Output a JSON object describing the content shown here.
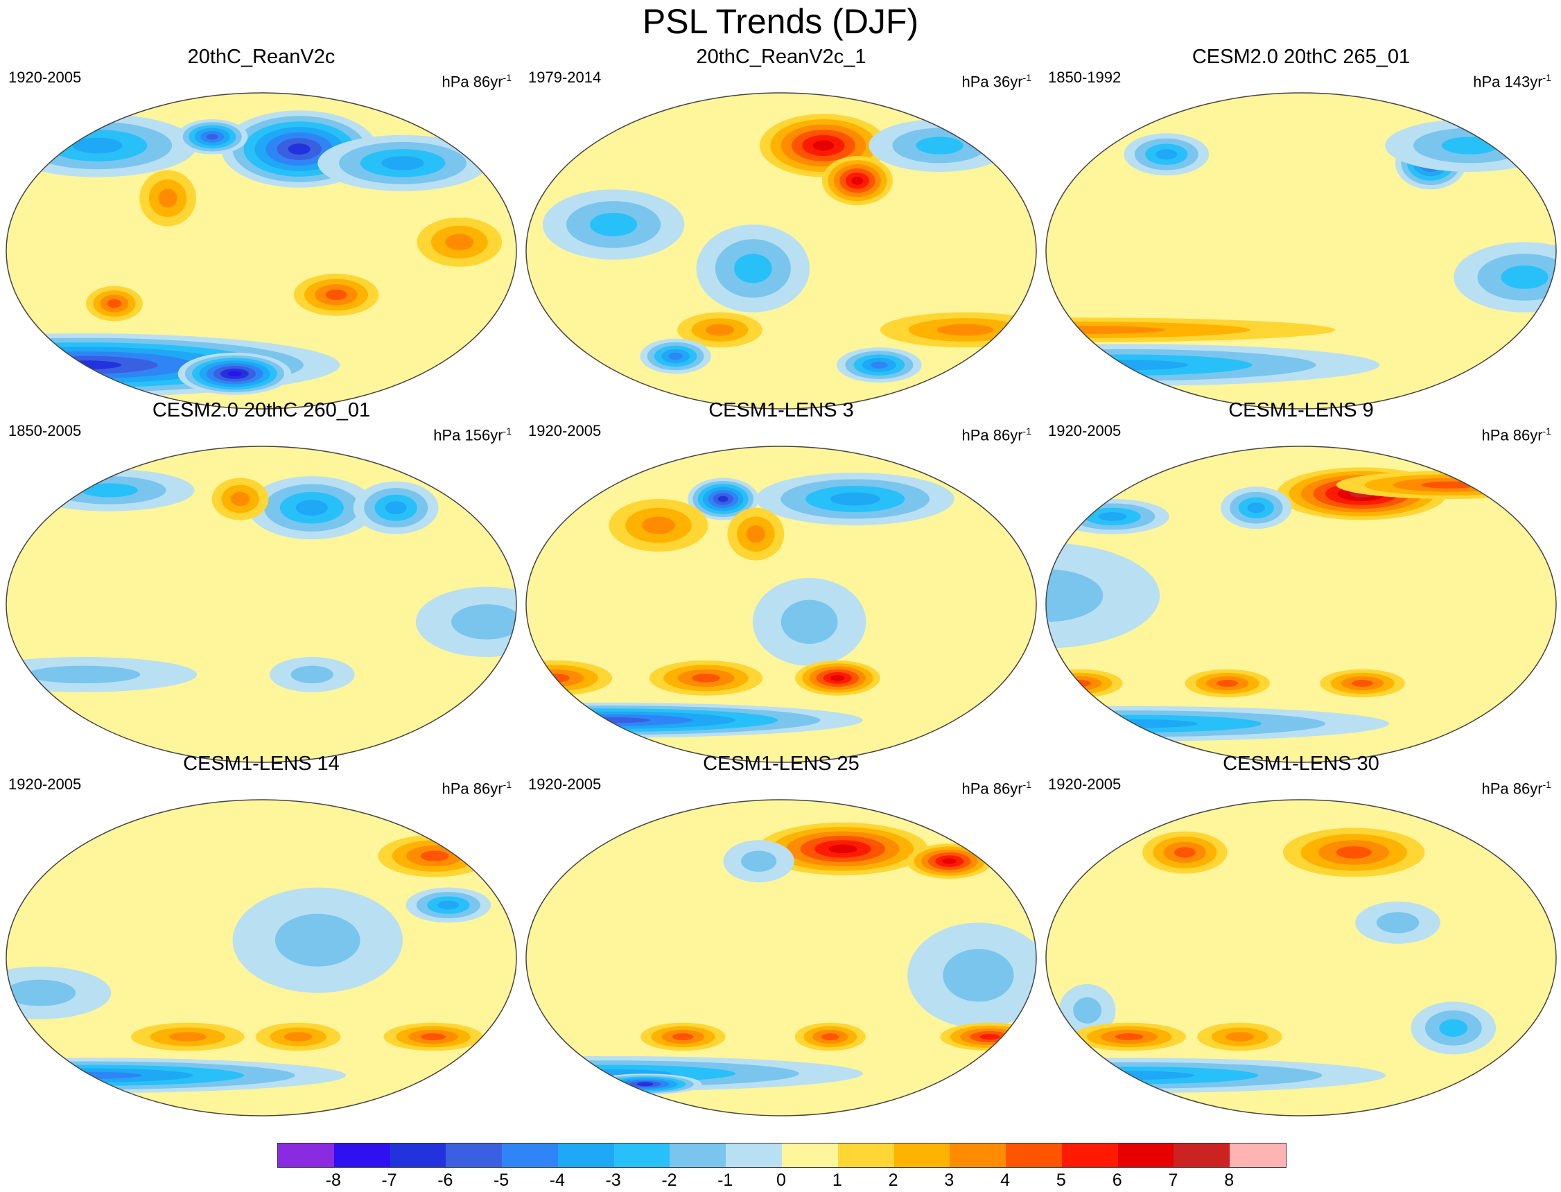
{
  "title": "PSL Trends (DJF)",
  "panels": [
    {
      "title": "20thC_ReanV2c",
      "period": "1920-2005",
      "units_prefix": "hPa 86yr",
      "units_exp": "-1",
      "blobs": [
        {
          "lon": -145,
          "lat": 58,
          "rx": 55,
          "ry": 22,
          "v": -6
        },
        {
          "lon": -60,
          "lat": 50,
          "rx": 60,
          "ry": 16,
          "v": -3
        },
        {
          "lon": 25,
          "lat": 60,
          "rx": 70,
          "ry": 18,
          "v": -3
        },
        {
          "lon": 110,
          "lat": 30,
          "rx": 20,
          "ry": 16,
          "v": 2
        },
        {
          "lon": -40,
          "lat": 5,
          "rx": 30,
          "ry": 14,
          "v": 2
        },
        {
          "lon": -125,
          "lat": -25,
          "rx": 30,
          "ry": 12,
          "v": 3
        },
        {
          "lon": 70,
          "lat": -30,
          "rx": 20,
          "ry": 10,
          "v": 3
        },
        {
          "lon": 0,
          "lat": -65,
          "rx": 180,
          "ry": 18,
          "v": -6
        },
        {
          "lon": 150,
          "lat": -70,
          "rx": 40,
          "ry": 12,
          "v": -7
        },
        {
          "lon": 130,
          "lat": 65,
          "rx": 25,
          "ry": 10,
          "v": -5
        }
      ]
    },
    {
      "title": "20thC_ReanV2c_1",
      "period": "1979-2014",
      "units_prefix": "hPa 36yr",
      "units_exp": "-1",
      "blobs": [
        {
          "lon": -140,
          "lat": 60,
          "rx": 45,
          "ry": 18,
          "v": 5
        },
        {
          "lon": -120,
          "lat": 40,
          "rx": 25,
          "ry": 14,
          "v": 5
        },
        {
          "lon": -30,
          "lat": 60,
          "rx": 50,
          "ry": 15,
          "v": -2
        },
        {
          "lon": 60,
          "lat": 15,
          "rx": 50,
          "ry": 20,
          "v": -2
        },
        {
          "lon": 160,
          "lat": -10,
          "rx": 40,
          "ry": 25,
          "v": -2
        },
        {
          "lon": -30,
          "lat": -45,
          "rx": 60,
          "ry": 10,
          "v": 2
        },
        {
          "lon": 130,
          "lat": -45,
          "rx": 30,
          "ry": 10,
          "v": 2
        },
        {
          "lon": -80,
          "lat": -65,
          "rx": 30,
          "ry": 10,
          "v": -4
        },
        {
          "lon": 80,
          "lat": -60,
          "rx": 25,
          "ry": 10,
          "v": -4
        }
      ]
    },
    {
      "title": "CESM2.0 20thC 265_01",
      "period": "1850-1992",
      "units_prefix": "hPa 143yr",
      "units_exp": "-1",
      "blobs": [
        {
          "lon": -70,
          "lat": 50,
          "rx": 25,
          "ry": 15,
          "v": -5
        },
        {
          "lon": -20,
          "lat": 60,
          "rx": 60,
          "ry": 15,
          "v": -2
        },
        {
          "lon": 60,
          "lat": 55,
          "rx": 30,
          "ry": 12,
          "v": -3
        },
        {
          "lon": -20,
          "lat": -15,
          "rx": 50,
          "ry": 20,
          "v": -2
        },
        {
          "lon": 0,
          "lat": -45,
          "rx": 180,
          "ry": 7,
          "v": 2
        },
        {
          "lon": 0,
          "lat": -65,
          "rx": 180,
          "ry": 12,
          "v": -3
        }
      ]
    },
    {
      "title": "CESM2.0 20thC 260_01",
      "period": "1850-2005",
      "units_prefix": "hPa 156yr",
      "units_exp": "-1",
      "blobs": [
        {
          "lon": -135,
          "lat": 55,
          "rx": 45,
          "ry": 18,
          "v": -3
        },
        {
          "lon": -60,
          "lat": 55,
          "rx": 30,
          "ry": 15,
          "v": -3
        },
        {
          "lon": 25,
          "lat": 65,
          "rx": 60,
          "ry": 12,
          "v": -2
        },
        {
          "lon": 160,
          "lat": 60,
          "rx": 20,
          "ry": 12,
          "v": 2
        },
        {
          "lon": -20,
          "lat": -10,
          "rx": 50,
          "ry": 20,
          "v": -1
        },
        {
          "lon": 40,
          "lat": -40,
          "rx": 80,
          "ry": 10,
          "v": -1
        },
        {
          "lon": -140,
          "lat": -40,
          "rx": 30,
          "ry": 10,
          "v": -1
        }
      ]
    },
    {
      "title": "CESM1-LENS 3",
      "period": "1920-2005",
      "units_prefix": "hPa 86yr",
      "units_exp": "-1",
      "blobs": [
        {
          "lon": -110,
          "lat": 60,
          "rx": 70,
          "ry": 15,
          "v": -3
        },
        {
          "lon": 125,
          "lat": 60,
          "rx": 25,
          "ry": 12,
          "v": -6
        },
        {
          "lon": 80,
          "lat": 45,
          "rx": 35,
          "ry": 15,
          "v": 2
        },
        {
          "lon": 160,
          "lat": 40,
          "rx": 20,
          "ry": 15,
          "v": 2
        },
        {
          "lon": -160,
          "lat": -10,
          "rx": 40,
          "ry": 25,
          "v": -1
        },
        {
          "lon": -135,
          "lat": -42,
          "rx": 30,
          "ry": 10,
          "v": 5
        },
        {
          "lon": 0,
          "lat": -42,
          "rx": 40,
          "ry": 10,
          "v": 3
        },
        {
          "lon": 120,
          "lat": -42,
          "rx": 40,
          "ry": 10,
          "v": 3
        },
        {
          "lon": 0,
          "lat": -66,
          "rx": 180,
          "ry": 10,
          "v": -5
        }
      ]
    },
    {
      "title": "CESM1-LENS 9",
      "period": "1920-2005",
      "units_prefix": "hPa 86yr",
      "units_exp": "-1",
      "blobs": [
        {
          "lon": -120,
          "lat": 63,
          "rx": 60,
          "ry": 15,
          "v": 6
        },
        {
          "lon": -20,
          "lat": 68,
          "rx": 80,
          "ry": 8,
          "v": 3
        },
        {
          "lon": 20,
          "lat": 50,
          "rx": 40,
          "ry": 10,
          "v": -3
        },
        {
          "lon": 140,
          "lat": 55,
          "rx": 25,
          "ry": 12,
          "v": -3
        },
        {
          "lon": 0,
          "lat": 5,
          "rx": 80,
          "ry": 30,
          "v": -1
        },
        {
          "lon": -130,
          "lat": -45,
          "rx": 30,
          "ry": 8,
          "v": 3
        },
        {
          "lon": 0,
          "lat": -45,
          "rx": 30,
          "ry": 8,
          "v": 3
        },
        {
          "lon": 120,
          "lat": -45,
          "rx": 30,
          "ry": 8,
          "v": 3
        },
        {
          "lon": 0,
          "lat": -68,
          "rx": 180,
          "ry": 10,
          "v": -3
        }
      ]
    },
    {
      "title": "CESM1-LENS 14",
      "period": "1920-2005",
      "units_prefix": "hPa 86yr",
      "units_exp": "-1",
      "blobs": [
        {
          "lon": -20,
          "lat": 58,
          "rx": 40,
          "ry": 12,
          "v": 3
        },
        {
          "lon": -40,
          "lat": 30,
          "rx": 30,
          "ry": 10,
          "v": -3
        },
        {
          "lon": -140,
          "lat": 10,
          "rx": 60,
          "ry": 30,
          "v": -1
        },
        {
          "lon": 20,
          "lat": -20,
          "rx": 50,
          "ry": 15,
          "v": -1
        },
        {
          "lon": -150,
          "lat": -45,
          "rx": 30,
          "ry": 8,
          "v": 2
        },
        {
          "lon": -40,
          "lat": -45,
          "rx": 35,
          "ry": 8,
          "v": 3
        },
        {
          "lon": 120,
          "lat": -45,
          "rx": 40,
          "ry": 8,
          "v": 2
        },
        {
          "lon": 0,
          "lat": -67,
          "rx": 180,
          "ry": 10,
          "v": -4
        }
      ]
    },
    {
      "title": "CESM1-LENS 25",
      "period": "1920-2005",
      "units_prefix": "hPa 86yr",
      "units_exp": "-1",
      "blobs": [
        {
          "lon": -120,
          "lat": 62,
          "rx": 60,
          "ry": 15,
          "v": 5
        },
        {
          "lon": -30,
          "lat": 55,
          "rx": 30,
          "ry": 10,
          "v": 5
        },
        {
          "lon": 160,
          "lat": 55,
          "rx": 25,
          "ry": 12,
          "v": -1
        },
        {
          "lon": -40,
          "lat": -10,
          "rx": 50,
          "ry": 30,
          "v": -1
        },
        {
          "lon": -140,
          "lat": -45,
          "rx": 25,
          "ry": 8,
          "v": 3
        },
        {
          "lon": -10,
          "lat": -45,
          "rx": 35,
          "ry": 8,
          "v": 4
        },
        {
          "lon": 100,
          "lat": -45,
          "rx": 30,
          "ry": 8,
          "v": 3
        },
        {
          "lon": 0,
          "lat": -66,
          "rx": 180,
          "ry": 10,
          "v": -3
        },
        {
          "lon": 20,
          "lat": -72,
          "rx": 40,
          "ry": 6,
          "v": -6
        }
      ]
    },
    {
      "title": "CESM1-LENS 30",
      "period": "1920-2005",
      "units_prefix": "hPa 86yr",
      "units_exp": "-1",
      "blobs": [
        {
          "lon": -130,
          "lat": 60,
          "rx": 50,
          "ry": 14,
          "v": 3
        },
        {
          "lon": 70,
          "lat": 60,
          "rx": 30,
          "ry": 12,
          "v": 3
        },
        {
          "lon": -110,
          "lat": 20,
          "rx": 30,
          "ry": 12,
          "v": -1
        },
        {
          "lon": 20,
          "lat": -30,
          "rx": 20,
          "ry": 15,
          "v": -1
        },
        {
          "lon": -60,
          "lat": -40,
          "rx": 30,
          "ry": 15,
          "v": -2
        },
        {
          "lon": 40,
          "lat": -45,
          "rx": 40,
          "ry": 8,
          "v": 3
        },
        {
          "lon": 0,
          "lat": -67,
          "rx": 180,
          "ry": 10,
          "v": -3
        },
        {
          "lon": 130,
          "lat": -45,
          "rx": 30,
          "ry": 8,
          "v": 2
        }
      ]
    }
  ],
  "colorbar": {
    "labels": [
      "-8",
      "-7",
      "-6",
      "-5",
      "-4",
      "-3",
      "-2",
      "-1",
      "0",
      "1",
      "2",
      "3",
      "4",
      "5",
      "6",
      "7",
      "8"
    ],
    "colors": [
      "#8a2be2",
      "#2f10f0",
      "#2233dd",
      "#3a5fe0",
      "#2f85f5",
      "#1ea8f5",
      "#28c0f8",
      "#79c5ee",
      "#b9dff2",
      "#fff59a",
      "#ffd633",
      "#ffb300",
      "#ff8c00",
      "#ff5500",
      "#ff1a00",
      "#e60000",
      "#cc2222",
      "#ffb3b3"
    ],
    "level_step": 1
  }
}
